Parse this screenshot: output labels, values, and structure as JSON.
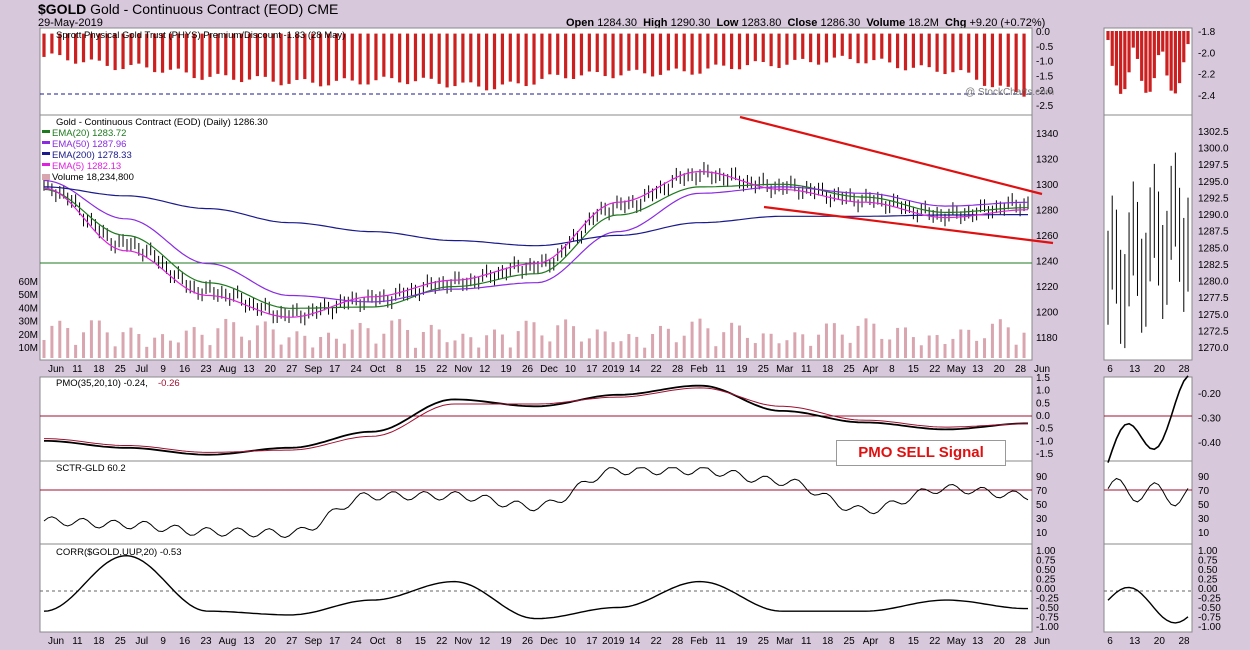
{
  "header": {
    "ticker": "$GOLD",
    "name": "Gold - Continuous Contract (EOD)",
    "exchange": "CME",
    "date": "29-May-2019",
    "open": "1284.30",
    "high": "1290.30",
    "low": "1283.80",
    "close": "1286.30",
    "volume": "18.2M",
    "chg": "+9.20 (+0.72%)",
    "watermark": "@ StockCharts.com"
  },
  "labels": {
    "open_label": "Open",
    "high_label": "High",
    "low_label": "Low",
    "close_label": "Close",
    "volume_label": "Volume",
    "chg_label": "Chg",
    "phys": "Sprott Physical Gold Trust (PHYS) Premium/Discount -1.83 (28 May)",
    "price": "Gold - Continuous Contract (EOD) (Daily) 1286.30",
    "ema20": "EMA(20) 1283.72",
    "ema50": "EMA(50) 1287.96",
    "ema200": "EMA(200) 1278.33",
    "ema5": "EMA(5) 1282.13",
    "volume": "Volume 18,234,800",
    "pmo": "PMO(35,20,10) -0.24,",
    "pmo_signal": "-0.26",
    "sctr": "SCTR-GLD 60.2",
    "corr": "CORR($GOLD,UUP,20) -0.53",
    "pmo_note": "PMO SELL Signal"
  },
  "colors": {
    "price": "#000000",
    "ema20": "#1e7a1e",
    "ema50": "#8a2be2",
    "ema200": "#1a1a8c",
    "ema5": "#e020e0",
    "trendline": "#e01010",
    "phys_bar": "#cc2020",
    "volume_bar": "#d9a6b0",
    "pmo_signal": "#a01030"
  },
  "x_axis_main": [
    "Jun",
    "11",
    "18",
    "25",
    "Jul",
    "9",
    "16",
    "23",
    "Aug",
    "13",
    "20",
    "27",
    "Sep",
    "17",
    "24",
    "Oct",
    "8",
    "15",
    "22",
    "Nov",
    "12",
    "19",
    "26",
    "Dec",
    "10",
    "17",
    "2019",
    "14",
    "22",
    "28",
    "Feb",
    "11",
    "19",
    "25",
    "Mar",
    "11",
    "18",
    "25",
    "Apr",
    "8",
    "15",
    "22",
    "May",
    "13",
    "20",
    "28",
    "Jun"
  ],
  "x_axis_side": [
    "6",
    "13",
    "20",
    "28"
  ],
  "price_axis": [
    "1340",
    "1320",
    "1300",
    "1280",
    "1260",
    "1240",
    "1220",
    "1200",
    "1180"
  ],
  "volume_axis": [
    "60M",
    "50M",
    "40M",
    "30M",
    "20M",
    "10M"
  ],
  "phys_axis": [
    "0.0",
    "-0.5",
    "-1.0",
    "-1.5",
    "-2.0",
    "-2.5"
  ],
  "side_price_axis": [
    "1302.5",
    "1300.0",
    "1297.5",
    "1295.0",
    "1292.5",
    "1290.0",
    "1287.5",
    "1285.0",
    "1282.5",
    "1280.0",
    "1277.5",
    "1275.0",
    "1272.5",
    "1270.0"
  ],
  "side_phys_axis": [
    "-1.8",
    "-2.0",
    "-2.2",
    "-2.4"
  ],
  "pmo_axis": [
    "1.5",
    "1.0",
    "0.5",
    "0.0",
    "-0.5",
    "-1.0",
    "-1.5"
  ],
  "side_pmo_axis": [
    "-0.20",
    "-0.30",
    "-0.40"
  ],
  "sctr_axis": [
    "90",
    "70",
    "50",
    "30",
    "10"
  ],
  "corr_axis": [
    "1.00",
    "0.75",
    "0.50",
    "0.25",
    "0.00",
    "-0.25",
    "-0.50",
    "-0.75",
    "-1.00"
  ],
  "chart_data": [
    {
      "type": "line",
      "title": "Gold - Continuous Contract (EOD) (Daily)",
      "x": [
        "Jun 2018",
        "Jul",
        "Aug",
        "Sep",
        "Oct",
        "Nov",
        "Dec",
        "Jan 2019",
        "Feb",
        "Mar",
        "Apr",
        "May",
        "Jun 2019"
      ],
      "series": [
        {
          "name": "Gold",
          "values": [
            1300,
            1255,
            1218,
            1200,
            1212,
            1225,
            1238,
            1285,
            1310,
            1300,
            1290,
            1278,
            1286.3
          ]
        },
        {
          "name": "EMA(20)",
          "values": [
            1298,
            1262,
            1225,
            1205,
            1206,
            1222,
            1232,
            1278,
            1300,
            1302,
            1292,
            1280,
            1283.72
          ]
        },
        {
          "name": "EMA(50)",
          "values": [
            1305,
            1275,
            1240,
            1215,
            1210,
            1220,
            1225,
            1265,
            1295,
            1300,
            1295,
            1285,
            1287.96
          ]
        },
        {
          "name": "EMA(200)",
          "values": [
            1300,
            1293,
            1283,
            1272,
            1265,
            1258,
            1254,
            1262,
            1272,
            1277,
            1277,
            1278,
            1278.33
          ]
        },
        {
          "name": "EMA(5)",
          "values": [
            1299,
            1250,
            1215,
            1198,
            1214,
            1227,
            1240,
            1288,
            1312,
            1298,
            1288,
            1276,
            1282.13
          ]
        }
      ],
      "ylim": [
        1170,
        1350
      ]
    },
    {
      "type": "bar",
      "title": "Sprott Physical Gold Trust (PHYS) Premium/Discount",
      "x": [
        "Jun 2018",
        "Jul",
        "Aug",
        "Sep",
        "Oct",
        "Nov",
        "Dec",
        "Jan 2019",
        "Feb",
        "Mar",
        "Apr",
        "May"
      ],
      "values": [
        -0.9,
        -1.3,
        -1.7,
        -1.9,
        -1.8,
        -2.05,
        -1.6,
        -1.5,
        -1.2,
        -1.0,
        -1.4,
        -2.3
      ],
      "ylim": [
        -2.6,
        0.1
      ]
    },
    {
      "type": "line",
      "title": "PMO(35,20,10)",
      "x": [
        "Jun 2018",
        "Jul",
        "Aug",
        "Sep",
        "Oct",
        "Nov",
        "Dec",
        "Jan 2019",
        "Feb",
        "Mar",
        "Apr",
        "May",
        "Jun 2019"
      ],
      "series": [
        {
          "name": "PMO",
          "values": [
            -1.0,
            -1.3,
            -1.6,
            -1.3,
            -0.6,
            0.8,
            0.5,
            1.0,
            1.4,
            0.3,
            -0.2,
            -0.5,
            -0.24
          ]
        },
        {
          "name": "Signal",
          "values": [
            -0.9,
            -1.2,
            -1.5,
            -1.4,
            -0.8,
            0.6,
            0.6,
            0.9,
            1.3,
            0.5,
            -0.1,
            -0.4,
            -0.26
          ]
        }
      ],
      "ylim": [
        -1.7,
        1.6
      ]
    },
    {
      "type": "line",
      "title": "SCTR-GLD",
      "x": [
        "Jun 2018",
        "Jul",
        "Aug",
        "Sep",
        "Oct",
        "Nov",
        "Dec",
        "Jan 2019",
        "Feb",
        "Mar",
        "Apr",
        "May",
        "Jun 2019"
      ],
      "series": [
        {
          "name": "SCTR-GLD",
          "values": [
            25,
            20,
            10,
            8,
            60,
            60,
            45,
            95,
            95,
            80,
            40,
            70,
            60.2
          ]
        }
      ],
      "ylim": [
        0,
        100
      ]
    },
    {
      "type": "line",
      "title": "CORR($GOLD,UUP,20)",
      "x": [
        "Jun 2018",
        "Jul",
        "Aug",
        "Sep",
        "Oct",
        "Nov",
        "Dec",
        "Jan 2019",
        "Feb",
        "Mar",
        "Apr",
        "May",
        "Jun 2019"
      ],
      "series": [
        {
          "name": "CORR",
          "values": [
            -0.6,
            0.9,
            -0.6,
            -0.7,
            -0.3,
            0.2,
            -0.8,
            -0.5,
            0.2,
            -0.6,
            -0.6,
            -0.3,
            -0.53
          ]
        }
      ],
      "ylim": [
        -1.0,
        1.0
      ]
    }
  ]
}
